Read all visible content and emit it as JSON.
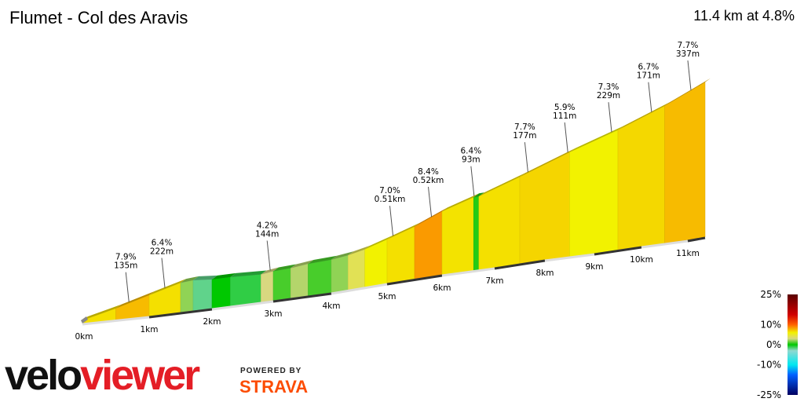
{
  "header": {
    "title": "Flumet - Col des Aravis",
    "summary": "11.4 km at 4.8%"
  },
  "chart_data": {
    "type": "area",
    "title": "Flumet - Col des Aravis",
    "distance_km": 11.4,
    "avg_grade_pct": 4.8,
    "x_ticks": [
      "0km",
      "1km",
      "2km",
      "3km",
      "4km",
      "5km",
      "6km",
      "7km",
      "8km",
      "9km",
      "10km",
      "11km"
    ],
    "segments": [
      {
        "from_km": 0,
        "to_km": 0.5,
        "grade_pct": 6.5
      },
      {
        "from_km": 0.5,
        "to_km": 1.0,
        "grade_pct": 7.5
      },
      {
        "from_km": 1.0,
        "to_km": 1.5,
        "grade_pct": 6.5
      },
      {
        "from_km": 1.5,
        "to_km": 1.7,
        "grade_pct": 2
      },
      {
        "from_km": 1.7,
        "to_km": 2.0,
        "grade_pct": -2
      },
      {
        "from_km": 2.0,
        "to_km": 2.3,
        "grade_pct": 0
      },
      {
        "from_km": 2.3,
        "to_km": 2.8,
        "grade_pct": -1
      },
      {
        "from_km": 2.8,
        "to_km": 3.0,
        "grade_pct": 3
      },
      {
        "from_km": 3.0,
        "to_km": 3.3,
        "grade_pct": 1
      },
      {
        "from_km": 3.3,
        "to_km": 3.6,
        "grade_pct": 2.5
      },
      {
        "from_km": 3.6,
        "to_km": 4.0,
        "grade_pct": 1
      },
      {
        "from_km": 4.0,
        "to_km": 4.3,
        "grade_pct": 2
      },
      {
        "from_km": 4.3,
        "to_km": 4.6,
        "grade_pct": 4
      },
      {
        "from_km": 4.6,
        "to_km": 5.0,
        "grade_pct": 6
      },
      {
        "from_km": 5.0,
        "to_km": 5.5,
        "grade_pct": 6.5
      },
      {
        "from_km": 5.5,
        "to_km": 6.0,
        "grade_pct": 8.4
      },
      {
        "from_km": 6.0,
        "to_km": 6.6,
        "grade_pct": 6.4
      },
      {
        "from_km": 6.6,
        "to_km": 6.7,
        "grade_pct": 0.5
      },
      {
        "from_km": 6.7,
        "to_km": 7.5,
        "grade_pct": 6.5
      },
      {
        "from_km": 7.5,
        "to_km": 8.5,
        "grade_pct": 6.8
      },
      {
        "from_km": 8.5,
        "to_km": 9.5,
        "grade_pct": 6.0
      },
      {
        "from_km": 9.5,
        "to_km": 10.5,
        "grade_pct": 6.7
      },
      {
        "from_km": 10.5,
        "to_km": 11.4,
        "grade_pct": 7.5
      }
    ],
    "annotations": [
      {
        "km": 0.65,
        "grade": "7.9%",
        "length": "135m"
      },
      {
        "km": 1.2,
        "grade": "6.4%",
        "length": "222m"
      },
      {
        "km": 2.9,
        "grade": "4.2%",
        "length": "144m"
      },
      {
        "km": 5.05,
        "grade": "7.0%",
        "length": "0.51km"
      },
      {
        "km": 5.75,
        "grade": "8.4%",
        "length": "0.52km"
      },
      {
        "km": 6.55,
        "grade": "6.4%",
        "length": "93m"
      },
      {
        "km": 7.6,
        "grade": "7.7%",
        "length": "177m"
      },
      {
        "km": 8.4,
        "grade": "5.9%",
        "length": "111m"
      },
      {
        "km": 9.3,
        "grade": "7.3%",
        "length": "229m"
      },
      {
        "km": 10.15,
        "grade": "6.7%",
        "length": "171m"
      },
      {
        "km": 11.0,
        "grade": "7.7%",
        "length": "337m"
      }
    ],
    "legend": {
      "labels": [
        "25%",
        "10%",
        "0%",
        "-10%",
        "-25%"
      ],
      "stops": [
        {
          "pct": 25,
          "color": "#5a0000"
        },
        {
          "pct": 15,
          "color": "#d00000"
        },
        {
          "pct": 10,
          "color": "#ff6000"
        },
        {
          "pct": 6,
          "color": "#f2f200"
        },
        {
          "pct": 3,
          "color": "#d8d880"
        },
        {
          "pct": 0,
          "color": "#00c800"
        },
        {
          "pct": -3,
          "color": "#90d8d0"
        },
        {
          "pct": -10,
          "color": "#00e8f0"
        },
        {
          "pct": -15,
          "color": "#0060ff"
        },
        {
          "pct": -25,
          "color": "#000060"
        }
      ]
    }
  },
  "branding": {
    "logo_a": "velo",
    "logo_b": "viewer",
    "powered": "POWERED BY",
    "strava": "STRAVA"
  }
}
